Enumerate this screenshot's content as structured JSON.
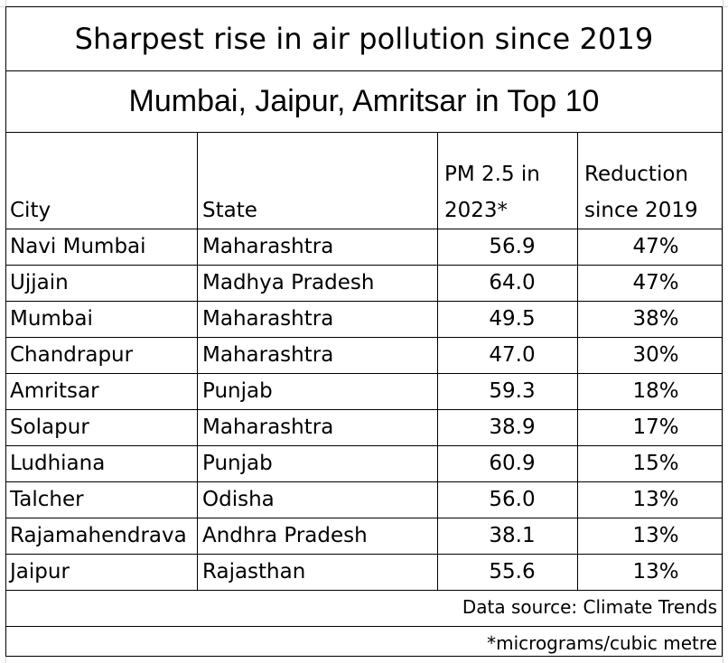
{
  "chart_data": {
    "type": "table",
    "title": "Sharpest rise in air pollution since 2019",
    "subtitle": "Mumbai, Jaipur, Amritsar in Top 10",
    "columns": [
      {
        "key": "city",
        "lines": [
          "City"
        ]
      },
      {
        "key": "state",
        "lines": [
          "State"
        ]
      },
      {
        "key": "pm25",
        "lines": [
          "PM 2.5 in",
          "2023*"
        ]
      },
      {
        "key": "reduction",
        "lines": [
          "Reduction",
          "since 2019"
        ]
      }
    ],
    "rows": [
      {
        "city": "Navi Mumbai",
        "state": "Maharashtra",
        "pm25": "56.9",
        "reduction": "47%"
      },
      {
        "city": "Ujjain",
        "state": "Madhya Pradesh",
        "pm25": "64.0",
        "reduction": "47%"
      },
      {
        "city": "Mumbai",
        "state": "Maharashtra",
        "pm25": "49.5",
        "reduction": "38%"
      },
      {
        "city": "Chandrapur",
        "state": "Maharashtra",
        "pm25": "47.0",
        "reduction": "30%"
      },
      {
        "city": "Amritsar",
        "state": "Punjab",
        "pm25": "59.3",
        "reduction": "18%"
      },
      {
        "city": "Solapur",
        "state": "Maharashtra",
        "pm25": "38.9",
        "reduction": "17%"
      },
      {
        "city": "Ludhiana",
        "state": "Punjab",
        "pm25": "60.9",
        "reduction": "15%"
      },
      {
        "city": "Talcher",
        "state": "Odisha",
        "pm25": "56.0",
        "reduction": "13%"
      },
      {
        "city": "Rajamahendrava",
        "state": "Andhra Pradesh",
        "pm25": "38.1",
        "reduction": "13%"
      },
      {
        "city": "Jaipur",
        "state": "Rajasthan",
        "pm25": "55.6",
        "reduction": "13%"
      }
    ],
    "notes": [
      "Data source: Climate Trends",
      "*micrograms/cubic metre"
    ]
  }
}
